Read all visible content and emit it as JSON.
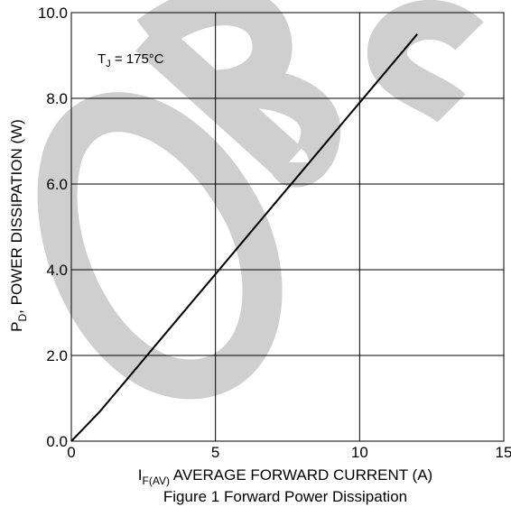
{
  "chart_data": {
    "type": "line",
    "title": "",
    "caption": "Figure 1 Forward Power Dissipation",
    "xlabel": {
      "main": "I",
      "sub": "F(AV)",
      "rest": " AVERAGE FORWARD CURRENT (A)"
    },
    "ylabel": {
      "main": "P",
      "sub": "D",
      "rest": ", POWER DISSIPATION (W)"
    },
    "xlim": [
      0,
      15
    ],
    "ylim": [
      0,
      10
    ],
    "xticks": [
      0,
      5,
      10,
      15
    ],
    "xtick_labels": [
      "0",
      "5",
      "10",
      "15"
    ],
    "yticks": [
      0,
      2,
      4,
      6,
      8,
      10
    ],
    "ytick_labels": [
      "0.0",
      "2.0",
      "4.0",
      "6.0",
      "8.0",
      "10.0"
    ],
    "grid": true,
    "annotation": {
      "main": "T",
      "sub": "J",
      "rest": " = 175°C"
    },
    "watermark": "OBS",
    "series": [
      {
        "x": [
          0,
          0.5,
          1.0,
          2.0,
          3.0,
          4.0,
          5.0,
          6.0,
          7.0,
          8.0,
          9.0,
          10.0,
          11.0,
          12.0
        ],
        "y": [
          0,
          0.35,
          0.7,
          1.5,
          2.3,
          3.1,
          3.9,
          4.7,
          5.5,
          6.3,
          7.1,
          7.9,
          8.7,
          9.5
        ],
        "color": "#000000"
      }
    ]
  }
}
